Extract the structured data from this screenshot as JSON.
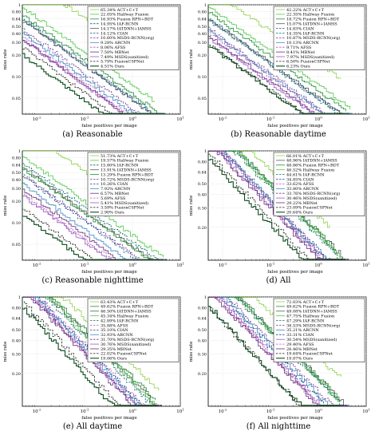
{
  "figure": {
    "captions": [
      "(a)  Reasonable",
      "(b)  Reasonable daytime",
      "(c)  Reasonable nighttime",
      "(d)  All",
      "(e)  All daytime",
      "(f)  All nighttime"
    ]
  },
  "style": {
    "colors": {
      "ACT+C+T": "#8fd24a",
      "Halfway Fusion": "#52c84a",
      "Fusion RPN+BDT": "#1f8f35",
      "IAF-RCNN": "#0d6b6b",
      "IATDNN+IAMSS": "#5a5a5a",
      "CIAN": "#1f4f8f",
      "MSDS-RCNN(org)": "#6e3f8c",
      "ARCNN": "#3c88c5",
      "AFSS": "#b85ab5",
      "MBNet": "#6a2f7a",
      "MSDS-RCNN(sanitized)": "#9b59c4",
      "FusionCSPNet": "#1a1a1a",
      "Ours": "#0e4d1e"
    },
    "dashed": [
      "IAF-RCNN",
      "CIAN",
      "AFSS",
      "MSDS-RCNN(org)",
      "FusionCSPNet"
    ]
  },
  "chart_data": [
    {
      "type": "line",
      "panel": "(a) Reasonable",
      "xlabel": "false positives per image",
      "ylabel": "miss rate",
      "xscale": "log",
      "yscale": "log",
      "xlim": [
        0.005,
        10
      ],
      "ylim": [
        0.03,
        1
      ],
      "xticks": [
        "10^-2",
        "10^-1",
        "10^0",
        "10^1"
      ],
      "yticks": [
        "1",
        "0.80",
        "0.64",
        "0.50",
        "0.40",
        "0.30",
        "0.20",
        "0.10",
        "0.05"
      ],
      "grid": true,
      "legend_position": "top-right",
      "series": [
        {
          "name": "ACT+C+T",
          "label": "65.34% ACT+C+T",
          "mr": 0.6534
        },
        {
          "name": "Halfway Fusion",
          "label": "22.05% Halfway Fusion",
          "mr": 0.2205
        },
        {
          "name": "Fusion RPN+BDT",
          "label": "16.93% Fusion RPN+BDT",
          "mr": 0.1693
        },
        {
          "name": "IAF-RCNN",
          "label": "14.95% IAF-RCNN",
          "mr": 0.1495
        },
        {
          "name": "IATDNN+IAMSS",
          "label": "14.17% IATDNN+IAMSS",
          "mr": 0.1417
        },
        {
          "name": "CIAN",
          "label": "14.12% CIAN",
          "mr": 0.1412
        },
        {
          "name": "MSDS-RCNN(org)",
          "label": "10.60% MSDS-RCNN(org)",
          "mr": 0.106
        },
        {
          "name": "ARCNN",
          "label": "9.28% ARCNN",
          "mr": 0.0928
        },
        {
          "name": "AFSS",
          "label": "8.06% AFSS",
          "mr": 0.0806
        },
        {
          "name": "MBNet",
          "label": "7.50% MBNet",
          "mr": 0.075
        },
        {
          "name": "MSDS-RCNN(sanitized)",
          "label": "7.49% MSDS(sanitized)",
          "mr": 0.0749
        },
        {
          "name": "FusionCSPNet",
          "label": "5.79% FusionCSPNet",
          "mr": 0.0579
        },
        {
          "name": "Ours",
          "label": "4.51% Ours",
          "mr": 0.0451
        }
      ]
    },
    {
      "type": "line",
      "panel": "(b) Reasonable daytime",
      "xlabel": "false positives per image",
      "ylabel": "miss rate",
      "xscale": "log",
      "yscale": "log",
      "xlim": [
        0.005,
        10
      ],
      "ylim": [
        0.03,
        1
      ],
      "xticks": [
        "10^-2",
        "10^-1",
        "10^0",
        "10^1"
      ],
      "yticks": [
        "1",
        "0.80",
        "0.64",
        "0.50",
        "0.40",
        "0.30",
        "0.20",
        "0.10",
        "0.05"
      ],
      "grid": true,
      "legend_position": "top-right",
      "series": [
        {
          "name": "ACT+C+T",
          "label": "42.22% ACT+C+T",
          "mr": 0.4222
        },
        {
          "name": "Halfway Fusion",
          "label": "22.35% Halfway Fusion",
          "mr": 0.2235
        },
        {
          "name": "Fusion RPN+BDT",
          "label": "18.72% Fusion RPN+BDT",
          "mr": 0.1872
        },
        {
          "name": "IATDNN+IAMSS",
          "label": "15.07% IATDNN+IAMSS",
          "mr": 0.1507
        },
        {
          "name": "CIAN",
          "label": "14.83% CIAN",
          "mr": 0.1483
        },
        {
          "name": "IAF-RCNN",
          "label": "14.35% IAF-RCNN",
          "mr": 0.1435
        },
        {
          "name": "MSDS-RCNN(org)",
          "label": "10.87% MSDS-RCNN(org)",
          "mr": 0.1087
        },
        {
          "name": "ARCNN",
          "label": "10.13% ARCNN",
          "mr": 0.1013
        },
        {
          "name": "AFSS",
          "label": "9.71% AFSS",
          "mr": 0.0971
        },
        {
          "name": "MBNet",
          "label": "8.41% MBNet",
          "mr": 0.0841
        },
        {
          "name": "MSDS-RCNN(sanitized)",
          "label": "7.97% MSDS(sanitized)",
          "mr": 0.0797
        },
        {
          "name": "FusionCSPNet",
          "label": "6.50% FusionCSPNet",
          "mr": 0.065
        },
        {
          "name": "Ours",
          "label": "6.23% Ours",
          "mr": 0.0623
        }
      ]
    },
    {
      "type": "line",
      "panel": "(c) Reasonable nighttime",
      "xlabel": "false positives per image",
      "ylabel": "miss rate",
      "xscale": "log",
      "yscale": "log",
      "xlim": [
        0.005,
        10
      ],
      "ylim": [
        0.03,
        1
      ],
      "xticks": [
        "10^-2",
        "10^-1",
        "10^0",
        "10^1"
      ],
      "yticks": [
        "1",
        "0.80",
        "0.64",
        "0.50",
        "0.40",
        "0.30",
        "0.20",
        "0.10",
        "0.05"
      ],
      "grid": true,
      "legend_position": "top-right",
      "series": [
        {
          "name": "ACT+C+T",
          "label": "51.73% ACT+C+T",
          "mr": 0.5173
        },
        {
          "name": "Halfway Fusion",
          "label": "19.57% Halfway Fusion",
          "mr": 0.1957
        },
        {
          "name": "IAF-RCNN",
          "label": "15.80% IAF-RCNN",
          "mr": 0.158
        },
        {
          "name": "IATDNN+IAMSS",
          "label": "13.91% IATDNN+IAMSS",
          "mr": 0.1391
        },
        {
          "name": "Fusion RPN+BDT",
          "label": "13.29% Fusion RPN+BDT",
          "mr": 0.1329
        },
        {
          "name": "MSDS-RCNN(org)",
          "label": "10.72% MSDS-RCNN(org)",
          "mr": 0.1072
        },
        {
          "name": "CIAN",
          "label": "10.26% CIAN",
          "mr": 0.1026
        },
        {
          "name": "ARCNN",
          "label": "7.92% ARCNN",
          "mr": 0.0792
        },
        {
          "name": "MBNet",
          "label": "6.57% MBNet",
          "mr": 0.0657
        },
        {
          "name": "AFSS",
          "label": "5.69% AFSS",
          "mr": 0.0569
        },
        {
          "name": "MSDS-RCNN(sanitized)",
          "label": "5.41% MSDS(sanitized)",
          "mr": 0.0541
        },
        {
          "name": "FusionCSPNet",
          "label": "3.59% FusionCSPNet",
          "mr": 0.0359
        },
        {
          "name": "Ours",
          "label": "2.90% Ours",
          "mr": 0.029
        }
      ]
    },
    {
      "type": "line",
      "panel": "(d) All",
      "xlabel": "false positives per image",
      "ylabel": "miss rate",
      "xscale": "log",
      "yscale": "log",
      "xlim": [
        0.005,
        10
      ],
      "ylim": [
        0.1,
        1
      ],
      "xticks": [
        "10^-2",
        "10^-1",
        "10^0",
        "10^1"
      ],
      "yticks": [
        "1",
        "0.80",
        "0.64",
        "0.50",
        "0.40",
        "0.30",
        "0.20"
      ],
      "grid": true,
      "legend_position": "top-right",
      "series": [
        {
          "name": "ACT+C+T",
          "label": "66.01% ACT+C+T",
          "mr": 0.6601
        },
        {
          "name": "IATDNN+IAMSS",
          "label": "48.96% IATDNN+IAMSS",
          "mr": 0.4896
        },
        {
          "name": "Fusion RPN+BDT",
          "label": "48.86% Fusion RPN+BDT",
          "mr": 0.4886
        },
        {
          "name": "Halfway Fusion",
          "label": "46.52% Halfway Fusion",
          "mr": 0.4652
        },
        {
          "name": "IAF-RCNN",
          "label": "44.61% IAF-RCNN",
          "mr": 0.4461
        },
        {
          "name": "CIAN",
          "label": "34.85% CIAN",
          "mr": 0.3485
        },
        {
          "name": "AFSS",
          "label": "33.62% AFSS",
          "mr": 0.3362
        },
        {
          "name": "ARCNN",
          "label": "33.80% ARCNN",
          "mr": 0.338
        },
        {
          "name": "MSDS-RCNN(org)",
          "label": "33.76% MSDS-RCNN(org)",
          "mr": 0.3376
        },
        {
          "name": "MSDS-RCNN(sanitized)",
          "label": "30.46% MSDS(sanitized)",
          "mr": 0.3046
        },
        {
          "name": "MBNet",
          "label": "29.22% MBNet",
          "mr": 0.2922
        },
        {
          "name": "FusionCSPNet",
          "label": "23.09% FusionCSPNet",
          "mr": 0.2309
        },
        {
          "name": "Ours",
          "label": "20.64% Ours",
          "mr": 0.2064
        }
      ]
    },
    {
      "type": "line",
      "panel": "(e) All daytime",
      "xlabel": "false positives per image",
      "ylabel": "miss rate",
      "xscale": "log",
      "yscale": "log",
      "xlim": [
        0.005,
        10
      ],
      "ylim": [
        0.1,
        1
      ],
      "xticks": [
        "10^-2",
        "10^-1",
        "10^0",
        "10^1"
      ],
      "yticks": [
        "1",
        "0.80",
        "0.64",
        "0.50",
        "0.40",
        "0.30",
        "0.20"
      ],
      "grid": true,
      "legend_position": "top-right",
      "series": [
        {
          "name": "ACT+C+T",
          "label": "63.43% ACT+C+T",
          "mr": 0.6343
        },
        {
          "name": "Fusion RPN+BDT",
          "label": "49.62% Fusion RPN+BDT",
          "mr": 0.4962
        },
        {
          "name": "IATDNN+IAMSS",
          "label": "46.50% IATDNN+IAMSS",
          "mr": 0.465
        },
        {
          "name": "Halfway Fusion",
          "label": "45.34% Halfway Fusion",
          "mr": 0.4534
        },
        {
          "name": "IAF-RCNN",
          "label": "42.89% IAF-RCNN",
          "mr": 0.4289
        },
        {
          "name": "AFSS",
          "label": "35.88% AFSS",
          "mr": 0.3588
        },
        {
          "name": "CIAN",
          "label": "35.10% CIAN",
          "mr": 0.351
        },
        {
          "name": "ARCNN",
          "label": "32.93% ARCNN",
          "mr": 0.3293
        },
        {
          "name": "MSDS-RCNN(org)",
          "label": "31.70% MSDS-RCNN(org)",
          "mr": 0.317
        },
        {
          "name": "MSDS-RCNN(sanitized)",
          "label": "30.76% MSDS(sanitized)",
          "mr": 0.3076
        },
        {
          "name": "MBNet",
          "label": "29.35% MBNet",
          "mr": 0.2935
        },
        {
          "name": "FusionCSPNet",
          "label": "22.02% FusionCSPNet",
          "mr": 0.2202
        },
        {
          "name": "Ours",
          "label": "19.06% Ours",
          "mr": 0.1906
        }
      ]
    },
    {
      "type": "line",
      "panel": "(f) All nighttime",
      "xlabel": "false positives per image",
      "ylabel": "miss rate",
      "xscale": "log",
      "yscale": "log",
      "xlim": [
        0.005,
        10
      ],
      "ylim": [
        0.1,
        1
      ],
      "xticks": [
        "10^-2",
        "10^-1",
        "10^0",
        "10^1"
      ],
      "yticks": [
        "1",
        "0.80",
        "0.64",
        "0.50",
        "0.40",
        "0.30",
        "0.20"
      ],
      "grid": true,
      "legend_position": "top-right",
      "series": [
        {
          "name": "ACT+C+T",
          "label": "72.03% ACT+C+T",
          "mr": 0.7203
        },
        {
          "name": "Fusion RPN+BDT",
          "label": "49.62% Fusion RPN+BDT",
          "mr": 0.4962
        },
        {
          "name": "IATDNN+IAMSS",
          "label": "49.08% IATDNN+IAMSS",
          "mr": 0.4908
        },
        {
          "name": "Halfway Fusion",
          "label": "47.75% Halfway Fusion",
          "mr": 0.4775
        },
        {
          "name": "IAF-RCNN",
          "label": "47.29% IAF-RCNN",
          "mr": 0.4729
        },
        {
          "name": "MSDS-RCNN(org)",
          "label": "38.53% MSDS-RCNN(org)",
          "mr": 0.3853
        },
        {
          "name": "ARCNN",
          "label": "35.21% ARCNN",
          "mr": 0.3521
        },
        {
          "name": "CIAN",
          "label": "33.31% CIAN",
          "mr": 0.3331
        },
        {
          "name": "MSDS-RCNN(sanitized)",
          "label": "30.54% MSDS(sanitized)",
          "mr": 0.3054
        },
        {
          "name": "AFSS",
          "label": "29.40% AFSS",
          "mr": 0.294
        },
        {
          "name": "MBNet",
          "label": "28.46% MBNet",
          "mr": 0.2846
        },
        {
          "name": "FusionCSPNet",
          "label": "19.64% FusionCSPNet",
          "mr": 0.1964
        },
        {
          "name": "Ours",
          "label": "19.87% Ours",
          "mr": 0.1987
        }
      ]
    }
  ]
}
